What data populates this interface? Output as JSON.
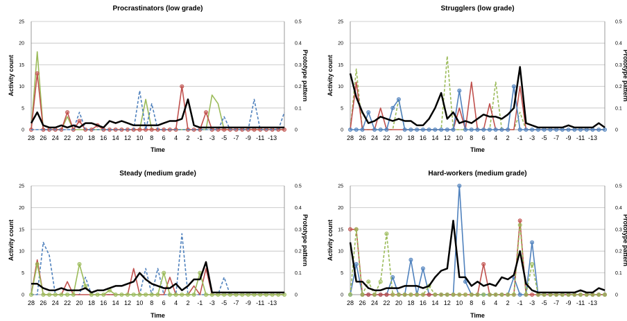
{
  "chart_data": [
    {
      "type": "line",
      "title": "Procrastinators (low grade)",
      "xlabel": "Time",
      "ylabel": "Activity count",
      "y2label": "Prototype pattern",
      "ylim": [
        0,
        25
      ],
      "y2lim": [
        0,
        0.5
      ],
      "yticks": [
        "0",
        "5",
        "10",
        "15",
        "20",
        "25"
      ],
      "y2ticks": [
        "0",
        "0.1",
        "0.2",
        "0.3",
        "0.4",
        "0.5"
      ],
      "xticklabels": [
        "28",
        "26",
        "24",
        "22",
        "20",
        "18",
        "16",
        "14",
        "12",
        "10",
        "8",
        "6",
        "4",
        "2",
        "-1",
        "-3",
        "-5",
        "-7",
        "-9",
        "-11",
        "-13"
      ],
      "grid": true,
      "series": [
        {
          "style": "solid",
          "color": "#9bbb59",
          "axis": "left",
          "values": [
            0,
            18,
            0,
            0,
            0,
            0,
            3,
            0,
            0,
            0,
            0,
            0,
            0,
            0,
            0,
            0,
            0,
            0,
            0,
            7,
            0,
            0,
            0,
            0,
            0,
            0,
            0,
            0,
            0,
            0,
            8,
            6,
            0,
            0,
            0,
            0,
            0,
            0,
            0,
            0,
            0,
            0,
            0
          ]
        },
        {
          "style": "solid",
          "color": "#c0504d",
          "axis": "left",
          "markers": true,
          "values": [
            0,
            13,
            0,
            0,
            0,
            0,
            4,
            0,
            2,
            0,
            0,
            1,
            0,
            0,
            0,
            0,
            0,
            0,
            0,
            0,
            0,
            0,
            0,
            0,
            0,
            10,
            0,
            0,
            0,
            4,
            0,
            0,
            0,
            0,
            0,
            0,
            0,
            0,
            0,
            0,
            0,
            0,
            0
          ]
        },
        {
          "style": "dashed",
          "color": "#4f81bd",
          "axis": "left",
          "values": [
            0,
            0,
            0,
            0,
            0,
            0,
            0,
            0,
            4,
            0,
            0,
            0,
            0,
            0,
            0,
            0,
            0,
            0,
            9,
            0,
            6,
            0,
            0,
            0,
            0,
            0,
            0,
            0,
            0,
            0,
            0,
            0,
            3,
            0,
            0,
            0,
            0,
            7,
            0,
            0,
            0,
            0,
            4
          ]
        },
        {
          "style": "solid",
          "color": "#000000",
          "axis": "right",
          "width": 2.5,
          "values": [
            0.03,
            0.08,
            0.02,
            0.01,
            0.01,
            0.02,
            0.01,
            0.02,
            0.01,
            0.03,
            0.03,
            0.02,
            0.01,
            0.04,
            0.03,
            0.04,
            0.03,
            0.02,
            0.02,
            0.02,
            0.02,
            0.02,
            0.03,
            0.04,
            0.04,
            0.05,
            0.14,
            0.02,
            0.01,
            0.01,
            0.01,
            0.01,
            0.01,
            0.01,
            0.01,
            0.01,
            0.01,
            0.01,
            0.01,
            0.01,
            0.01,
            0.01,
            0.01
          ]
        }
      ]
    },
    {
      "type": "line",
      "title": "Strugglers (low grade)",
      "xlabel": "Time",
      "ylabel": "Activity count",
      "y2label": "Prototype pattern",
      "ylim": [
        0,
        25
      ],
      "y2lim": [
        0,
        0.5
      ],
      "yticks": [
        "0",
        "5",
        "10",
        "15",
        "20",
        "25"
      ],
      "y2ticks": [
        "0",
        "0.1",
        "0.2",
        "0.3",
        "0.4",
        "0.5"
      ],
      "xticklabels": [
        "28",
        "26",
        "24",
        "22",
        "20",
        "18",
        "16",
        "14",
        "12",
        "10",
        "8",
        "6",
        "4",
        "2",
        "-1",
        "-3",
        "-5",
        "-7",
        "-9",
        "-11",
        "-13"
      ],
      "grid": true,
      "series": [
        {
          "style": "dashed",
          "color": "#9bbb59",
          "axis": "left",
          "values": [
            0,
            14,
            0,
            0,
            0,
            0,
            0,
            0,
            7,
            0,
            0,
            0,
            0,
            0,
            0,
            0,
            17,
            0,
            0,
            0,
            0,
            0,
            0,
            0,
            11,
            0,
            0,
            0,
            4,
            0,
            0,
            0,
            0,
            0,
            0,
            0,
            0,
            0,
            0,
            0,
            0,
            0,
            0
          ]
        },
        {
          "style": "solid",
          "color": "#c0504d",
          "axis": "left",
          "values": [
            0,
            11,
            0,
            0,
            0,
            5,
            0,
            0,
            0,
            0,
            0,
            0,
            0,
            0,
            0,
            0,
            0,
            0,
            5,
            0,
            11,
            0,
            0,
            6,
            0,
            0,
            0,
            0,
            10,
            0,
            0,
            0,
            0,
            0,
            0,
            0,
            0,
            0,
            0,
            0,
            0,
            0,
            0
          ]
        },
        {
          "style": "solid",
          "color": "#4f81bd",
          "axis": "left",
          "markers": true,
          "values": [
            0,
            0,
            0,
            4,
            0,
            0,
            0,
            5,
            7,
            0,
            0,
            0,
            0,
            0,
            0,
            0,
            0,
            0,
            9,
            0,
            0,
            0,
            0,
            0,
            0,
            0,
            0,
            10,
            0,
            0,
            0,
            0,
            0,
            0,
            0,
            0,
            0,
            0,
            0,
            0,
            0,
            0,
            0
          ]
        },
        {
          "style": "solid",
          "color": "#000000",
          "axis": "right",
          "width": 2.5,
          "values": [
            0.26,
            0.15,
            0.08,
            0.03,
            0.04,
            0.06,
            0.05,
            0.04,
            0.05,
            0.04,
            0.04,
            0.02,
            0.02,
            0.05,
            0.1,
            0.17,
            0.05,
            0.08,
            0.03,
            0.04,
            0.03,
            0.05,
            0.07,
            0.06,
            0.06,
            0.05,
            0.07,
            0.1,
            0.29,
            0.03,
            0.02,
            0.01,
            0.01,
            0.01,
            0.01,
            0.01,
            0.02,
            0.01,
            0.01,
            0.01,
            0.01,
            0.03,
            0.01
          ]
        }
      ]
    },
    {
      "type": "line",
      "title": "Steady (medium grade)",
      "xlabel": "Time",
      "ylabel": "Activity count",
      "y2label": "Prototype pattern",
      "ylim": [
        0,
        25
      ],
      "y2lim": [
        0,
        0.5
      ],
      "yticks": [
        "0",
        "5",
        "10",
        "15",
        "20",
        "25"
      ],
      "y2ticks": [
        "0",
        "0.1",
        "0.2",
        "0.3",
        "0.4",
        "0.5"
      ],
      "xticklabels": [
        "28",
        "26",
        "24",
        "22",
        "20",
        "18",
        "16",
        "14",
        "12",
        "10",
        "8",
        "6",
        "4",
        "2",
        "-1",
        "-3",
        "-5",
        "-7",
        "-9",
        "-11",
        "-13"
      ],
      "grid": true,
      "series": [
        {
          "style": "dashed",
          "color": "#4f81bd",
          "axis": "left",
          "values": [
            0,
            0,
            12,
            9,
            0,
            0,
            0,
            0,
            0,
            4,
            0,
            0,
            0,
            0,
            0,
            0,
            0,
            0,
            0,
            6,
            0,
            6,
            0,
            0,
            0,
            14,
            0,
            0,
            0,
            0,
            0,
            0,
            4,
            0,
            0,
            0,
            0,
            0,
            0,
            0,
            0,
            0,
            0
          ]
        },
        {
          "style": "solid",
          "color": "#c0504d",
          "axis": "left",
          "values": [
            0,
            8,
            0,
            0,
            0,
            0,
            3,
            0,
            0,
            0,
            0,
            0,
            0,
            0,
            0,
            0,
            0,
            6,
            0,
            0,
            0,
            0,
            0,
            4,
            0,
            0,
            0,
            2,
            0,
            6,
            0,
            0,
            0,
            0,
            0,
            0,
            0,
            0,
            0,
            0,
            0,
            0,
            0
          ]
        },
        {
          "style": "solid",
          "color": "#9bbb59",
          "axis": "left",
          "markers": true,
          "values": [
            0,
            7,
            0,
            0,
            0,
            0,
            0,
            0,
            7,
            2,
            0,
            0,
            0,
            1,
            0,
            0,
            0,
            0,
            0,
            0,
            0,
            0,
            5,
            0,
            0,
            0,
            0,
            0,
            5,
            0,
            0,
            0,
            0,
            0,
            0,
            0,
            0,
            0,
            0,
            0,
            0,
            0,
            0
          ]
        },
        {
          "style": "solid",
          "color": "#000000",
          "axis": "right",
          "width": 2.5,
          "values": [
            0.05,
            0.05,
            0.03,
            0.02,
            0.02,
            0.03,
            0.02,
            0.02,
            0.02,
            0.03,
            0.01,
            0.02,
            0.02,
            0.03,
            0.04,
            0.04,
            0.05,
            0.06,
            0.1,
            0.07,
            0.05,
            0.04,
            0.03,
            0.03,
            0.05,
            0.02,
            0.04,
            0.07,
            0.07,
            0.15,
            0.01,
            0.01,
            0.01,
            0.01,
            0.01,
            0.01,
            0.01,
            0.01,
            0.01,
            0.01,
            0.01,
            0.01,
            0.01
          ]
        }
      ]
    },
    {
      "type": "line",
      "title": "Hard-workers (medium grade)",
      "xlabel": "Time",
      "ylabel": "Activity count",
      "y2label": "Prototype pattern",
      "ylim": [
        0,
        25
      ],
      "y2lim": [
        0,
        0.5
      ],
      "yticks": [
        "0",
        "5",
        "10",
        "15",
        "20",
        "25"
      ],
      "y2ticks": [
        "0",
        "0.1",
        "0.2",
        "0.3",
        "0.4",
        "0.5"
      ],
      "xticklabels": [
        "28",
        "26",
        "24",
        "22",
        "20",
        "18",
        "16",
        "14",
        "12",
        "10",
        "8",
        "6",
        "4",
        "2",
        "-1",
        "-3",
        "-5",
        "-7",
        "-9",
        "-11",
        "-13"
      ],
      "grid": true,
      "series": [
        {
          "style": "solid",
          "color": "#4f81bd",
          "axis": "left",
          "markers": true,
          "values": [
            0,
            7,
            0,
            0,
            0,
            0,
            0,
            4,
            0,
            0,
            8,
            0,
            6,
            0,
            0,
            0,
            0,
            0,
            25,
            3,
            0,
            0,
            0,
            0,
            0,
            0,
            0,
            4,
            0,
            0,
            12,
            0,
            0,
            0,
            0,
            0,
            0,
            0,
            0,
            0,
            0,
            0,
            0
          ]
        },
        {
          "style": "solid",
          "color": "#c0504d",
          "axis": "left",
          "markers": true,
          "values": [
            15,
            15,
            0,
            0,
            0,
            0,
            0,
            0,
            0,
            0,
            0,
            0,
            0,
            0,
            0,
            0,
            0,
            0,
            0,
            0,
            0,
            0,
            7,
            0,
            0,
            0,
            0,
            0,
            17,
            0,
            0,
            0,
            0,
            0,
            0,
            0,
            0,
            0,
            0,
            0,
            0,
            0,
            0
          ]
        },
        {
          "style": "dashed",
          "color": "#9bbb59",
          "axis": "left",
          "markers": true,
          "values": [
            0,
            15,
            0,
            3,
            0,
            3,
            14,
            0,
            0,
            0,
            0,
            0,
            0,
            2,
            0,
            0,
            0,
            0,
            0,
            0,
            0,
            0,
            0,
            0,
            0,
            0,
            0,
            0,
            16,
            0,
            7,
            0,
            0,
            0,
            0,
            0,
            0,
            0,
            0,
            0,
            0,
            0,
            0
          ]
        },
        {
          "style": "solid",
          "color": "#000000",
          "axis": "right",
          "width": 2.5,
          "values": [
            0.24,
            0.06,
            0.06,
            0.03,
            0.02,
            0.02,
            0.03,
            0.03,
            0.03,
            0.04,
            0.04,
            0.04,
            0.03,
            0.04,
            0.08,
            0.11,
            0.12,
            0.34,
            0.08,
            0.08,
            0.04,
            0.06,
            0.04,
            0.05,
            0.04,
            0.08,
            0.07,
            0.09,
            0.2,
            0.05,
            0.02,
            0.01,
            0.01,
            0.01,
            0.01,
            0.01,
            0.01,
            0.01,
            0.02,
            0.01,
            0.01,
            0.03,
            0.02
          ]
        }
      ]
    }
  ]
}
